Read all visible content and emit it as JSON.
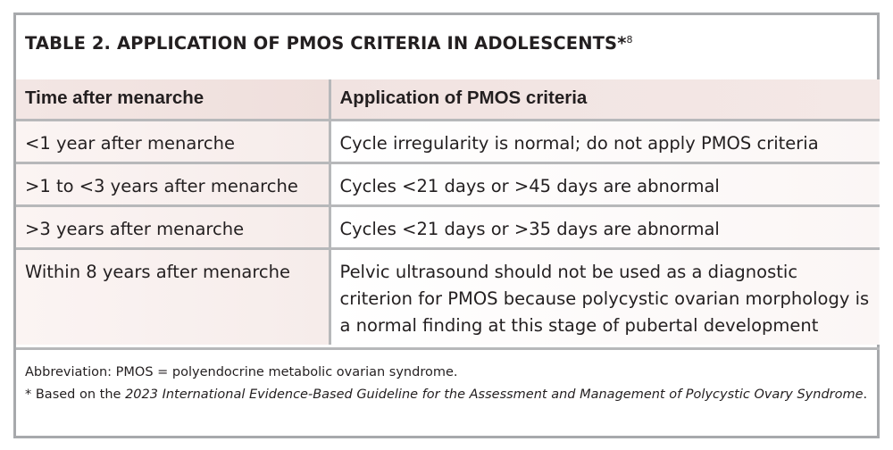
{
  "table": {
    "title_label": "TABLE 2.",
    "title_text": "APPLICATION OF PMOS CRITERIA IN ADOLESCENTS*",
    "title_ref": "8",
    "columns": [
      "Time after menarche",
      "Application of PMOS criteria"
    ],
    "rows": [
      [
        "<1 year after menarche",
        "Cycle irregularity is normal; do not apply PMOS criteria"
      ],
      [
        ">1 to <3 years after menarche",
        "Cycles <21 days or >45 days are abnormal"
      ],
      [
        ">3 years after menarche",
        "Cycles <21 days or >35 days are abnormal"
      ],
      [
        "Within 8 years after menarche",
        "Pelvic ultrasound should not be used as a diagnostic criterion for PMOS because polycystic ovarian morphology is a normal finding at this stage of pubertal development"
      ]
    ]
  },
  "footnotes": {
    "abbreviation": "Abbreviation: PMOS = polyendocrine metabolic ovarian syndrome.",
    "source_prefix": "* Based on the ",
    "source_title": "2023 International Evidence-Based Guideline for the Assessment and Management of Polycystic Ovary Syndrome",
    "source_suffix": "."
  }
}
